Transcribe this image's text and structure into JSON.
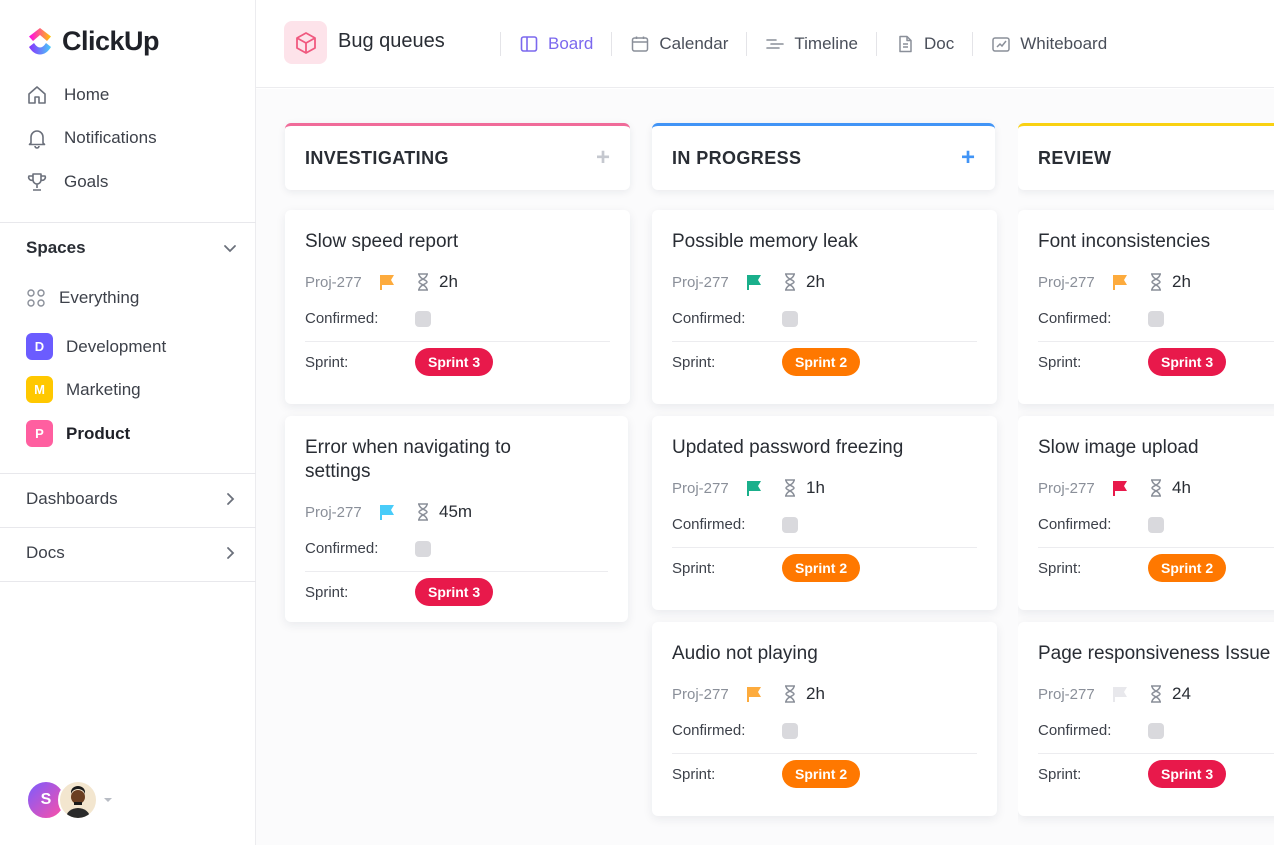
{
  "brand": {
    "name": "ClickUp"
  },
  "nav": [
    {
      "label": "Home",
      "icon": "home-icon"
    },
    {
      "label": "Notifications",
      "icon": "bell-icon"
    },
    {
      "label": "Goals",
      "icon": "trophy-icon"
    }
  ],
  "spaces": {
    "heading": "Spaces",
    "everything": "Everything",
    "items": [
      {
        "letter": "D",
        "label": "Development",
        "color": "#6b5cff"
      },
      {
        "letter": "M",
        "label": "Marketing",
        "color": "#ffc800"
      },
      {
        "letter": "P",
        "label": "Product",
        "color": "#ff5fa0"
      }
    ]
  },
  "sections": {
    "dashboards": "Dashboards",
    "docs": "Docs"
  },
  "user": {
    "initial": "S"
  },
  "header": {
    "title": "Bug queues",
    "tabs": [
      {
        "label": "Board",
        "icon": "board-icon",
        "active": true
      },
      {
        "label": "Calendar",
        "icon": "calendar-icon"
      },
      {
        "label": "Timeline",
        "icon": "timeline-icon"
      },
      {
        "label": "Doc",
        "icon": "doc-icon"
      },
      {
        "label": "Whiteboard",
        "icon": "whiteboard-icon"
      }
    ]
  },
  "labels": {
    "confirmed": "Confirmed:",
    "sprint": "Sprint:"
  },
  "columns": [
    {
      "title": "INVESTIGATING",
      "color": "#f06b99",
      "plus_color": "#c5c8cf",
      "cards": [
        {
          "title": "Slow speed report",
          "proj": "Proj-277",
          "flag": "#fdab3d",
          "duration": "2h",
          "sprint": "Sprint 3",
          "sprint_color": "#e8194b"
        },
        {
          "title": "Error when navigating to settings",
          "proj": "Proj-277",
          "flag": "#49ccf9",
          "duration": "45m",
          "sprint": "Sprint 3",
          "sprint_color": "#e8194b"
        }
      ]
    },
    {
      "title": "IN PROGRESS",
      "color": "#4194f6",
      "plus_color": "#4194f6",
      "cards": [
        {
          "title": "Possible memory leak",
          "proj": "Proj-277",
          "flag": "#1aaf8b",
          "duration": "2h",
          "sprint": "Sprint 2",
          "sprint_color": "#ff7800"
        },
        {
          "title": "Updated password freezing",
          "proj": "Proj-277",
          "flag": "#1aaf8b",
          "duration": "1h",
          "sprint": "Sprint 2",
          "sprint_color": "#ff7800"
        },
        {
          "title": "Audio not playing",
          "proj": "Proj-277",
          "flag": "#fdab3d",
          "duration": "2h",
          "sprint": "Sprint 2",
          "sprint_color": "#ff7800"
        }
      ]
    },
    {
      "title": "REVIEW",
      "color": "#f9d112",
      "plus_color": "#c5c8cf",
      "cards": [
        {
          "title": "Font inconsistencies",
          "proj": "Proj-277",
          "flag": "#fdab3d",
          "duration": "2h",
          "sprint": "Sprint 3",
          "sprint_color": "#e8194b"
        },
        {
          "title": "Slow image upload",
          "proj": "Proj-277",
          "flag": "#e8194b",
          "duration": "4h",
          "sprint": "Sprint 2",
          "sprint_color": "#ff7800"
        },
        {
          "title": "Page responsiveness Issue",
          "proj": "Proj-277",
          "flag": "#e8e8ec",
          "duration": "24",
          "sprint": "Sprint 3",
          "sprint_color": "#e8194b"
        }
      ]
    }
  ]
}
